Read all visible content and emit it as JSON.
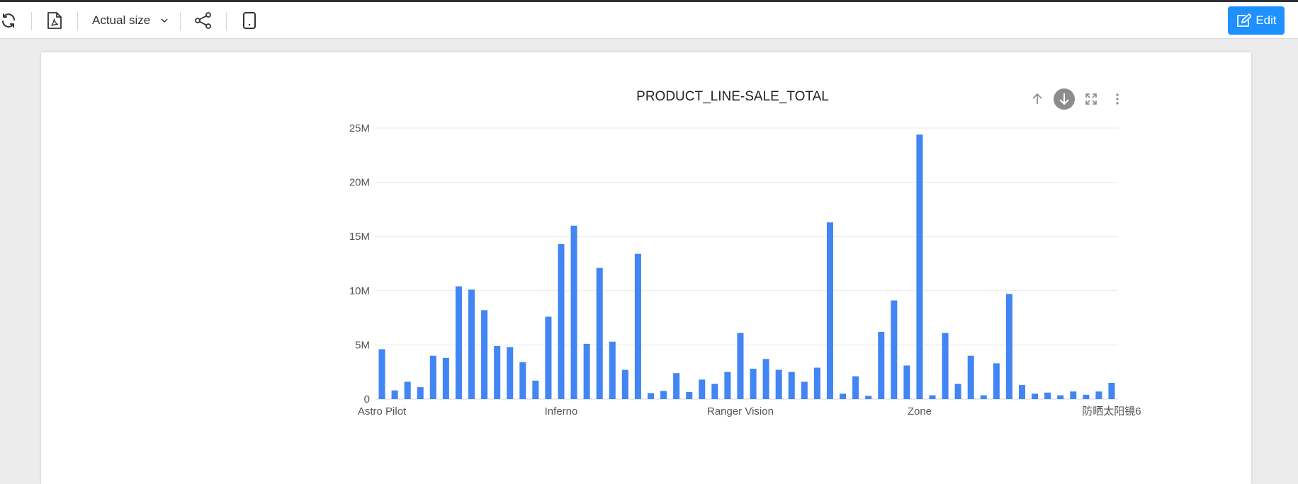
{
  "toolbar": {
    "zoom_label": "Actual size",
    "edit_label": "Edit",
    "icons": [
      "refresh-icon",
      "pdf-icon",
      "chevron-down-icon",
      "share-icon",
      "tablet-icon",
      "edit-icon"
    ],
    "accent_color": "#1e90ff"
  },
  "chart": {
    "title": "PRODUCT_LINE-SALE_TOTAL",
    "actions": [
      "arrow-up-icon",
      "arrow-down-circle-icon",
      "fullscreen-icon",
      "more-vertical-icon"
    ]
  },
  "chart_data": {
    "type": "bar",
    "title": "PRODUCT_LINE-SALE_TOTAL",
    "bar_color": "#4285f4",
    "grid": true,
    "ylim": [
      0,
      25000000
    ],
    "y_ticks": [
      "0",
      "5M",
      "10M",
      "15M",
      "20M",
      "25M"
    ],
    "x_tick_labels": [
      "Astro Pilot",
      "Inferno",
      "Ranger Vision",
      "Zone",
      "防晒太阳镜6"
    ],
    "values": [
      4600000,
      800000,
      1600000,
      1100000,
      4000000,
      3800000,
      10400000,
      10100000,
      8200000,
      4900000,
      4800000,
      3400000,
      1700000,
      7600000,
      14300000,
      16000000,
      5100000,
      12100000,
      5300000,
      2700000,
      13400000,
      550000,
      750000,
      2400000,
      650000,
      1800000,
      1400000,
      2500000,
      6100000,
      2800000,
      3700000,
      2700000,
      2500000,
      1600000,
      2900000,
      16300000,
      500000,
      2100000,
      300000,
      6200000,
      9100000,
      3100000,
      24400000,
      350000,
      6100000,
      1400000,
      4000000,
      350000,
      3300000,
      9700000,
      1300000,
      500000,
      600000,
      350000,
      700000,
      400000,
      700000,
      1500000
    ]
  }
}
